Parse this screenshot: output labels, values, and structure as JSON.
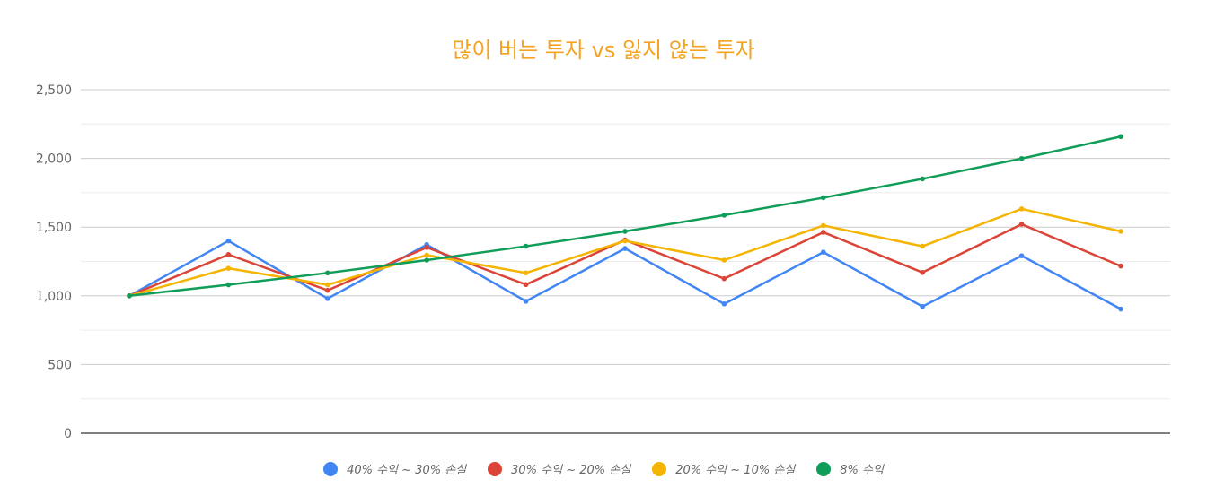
{
  "chart_data": {
    "type": "line",
    "title": "많이 버는 투자 vs 잃지 않는 투자",
    "xlabel": "",
    "ylabel": "",
    "ylim": [
      0,
      2500
    ],
    "yticks": [
      "0",
      "500",
      "1,000",
      "1,500",
      "2,000",
      "2,500"
    ],
    "ytick_values": [
      0,
      500,
      1000,
      1500,
      2000,
      2500
    ],
    "x": [
      0,
      1,
      2,
      3,
      4,
      5,
      6,
      7,
      8,
      9,
      10
    ],
    "grid": true,
    "legend_position": "bottom",
    "series": [
      {
        "name": "40% 수익 ~ 30% 손실",
        "color": "#4285f4",
        "values": [
          1000,
          1400,
          980,
          1372,
          960.4,
          1344.56,
          941.19,
          1317.67,
          922.37,
          1291.32,
          903.92
        ]
      },
      {
        "name": "30% 수익 ~ 20% 손실",
        "color": "#db4437",
        "values": [
          1000,
          1300,
          1040,
          1352,
          1081.6,
          1406.08,
          1124.86,
          1462.32,
          1169.86,
          1520.82,
          1216.65
        ]
      },
      {
        "name": "20% 수익 ~ 10% 손실",
        "color": "#f4b400",
        "values": [
          1000,
          1200,
          1080,
          1296,
          1166.4,
          1399.68,
          1259.71,
          1511.65,
          1360.49,
          1632.59,
          1469.33
        ]
      },
      {
        "name": "8% 수익",
        "color": "#0f9d58",
        "values": [
          1000,
          1080,
          1166.4,
          1259.71,
          1360.49,
          1469.33,
          1586.87,
          1713.82,
          1850.93,
          1999.0,
          2158.92
        ]
      }
    ]
  }
}
